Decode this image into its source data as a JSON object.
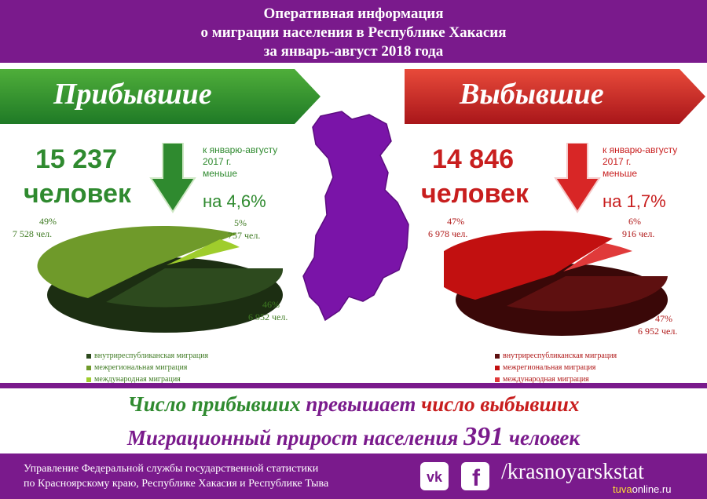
{
  "header": {
    "line1": "Оперативная информация",
    "line2": "о миграции населения в Республике Хакасия",
    "line3": "за январь-август 2018 года"
  },
  "arrivals": {
    "title": "Прибывшие",
    "total_number": "15 237",
    "total_unit": "человек",
    "compare_line1": "к январю-августу",
    "compare_line2": "2017 г.",
    "compare_line3": "меньше",
    "compare_pct": "на 4,6%",
    "slices": [
      {
        "pct_label": "46%",
        "count_label": "6 952 чел.",
        "share": 46,
        "color": "#2d4a1e"
      },
      {
        "pct_label": "49%",
        "count_label": "7 528 чел.",
        "share": 49,
        "color": "#6f9a2a"
      },
      {
        "pct_label": "5%",
        "count_label": "757 чел.",
        "share": 5,
        "color": "#9fcd2c"
      }
    ],
    "legend": [
      {
        "label": "внутриреспубликанская миграция",
        "color": "#2d4a1e"
      },
      {
        "label": "межрегиональная миграция",
        "color": "#6f9a2a"
      },
      {
        "label": "международная миграция",
        "color": "#9fcd2c"
      }
    ]
  },
  "departures": {
    "title": "Выбывшие",
    "total_number": "14 846",
    "total_unit": "человек",
    "compare_line1": "к январю-августу",
    "compare_line2": "2017 г.",
    "compare_line3": "меньше",
    "compare_pct": "на 1,7%",
    "slices": [
      {
        "pct_label": "47%",
        "count_label": "6 952 чел.",
        "share": 47,
        "color": "#5e1010"
      },
      {
        "pct_label": "47%",
        "count_label": "6 978 чел.",
        "share": 47,
        "color": "#c21010"
      },
      {
        "pct_label": "6%",
        "count_label": "916 чел.",
        "share": 6,
        "color": "#e03a3a"
      }
    ],
    "legend": [
      {
        "label": "внутриреспубликанская миграция",
        "color": "#5e1010"
      },
      {
        "label": "межрегиональная миграция",
        "color": "#c21010"
      },
      {
        "label": "международная миграция",
        "color": "#e03a3a"
      }
    ]
  },
  "conclusion": {
    "part1": "Число прибывших",
    "part2": "превышает",
    "part3": "число выбывших",
    "line2_text": "Миграционный прирост населения",
    "line2_number": "391",
    "line2_unit": "человек"
  },
  "footer": {
    "org_line1": "Управление Федеральной службы государственной статистики",
    "org_line2": "по Красноярскому краю, Республике Хакасия и Республике Тыва",
    "vk_label": "vk",
    "fb_label": "f",
    "handle": "/krasnoyarskstat",
    "watermark_a": "tuva",
    "watermark_b": "online.ru"
  },
  "colors": {
    "purple": "#7a1a8c",
    "green": "#2f8a2f",
    "red": "#c81e1e"
  }
}
